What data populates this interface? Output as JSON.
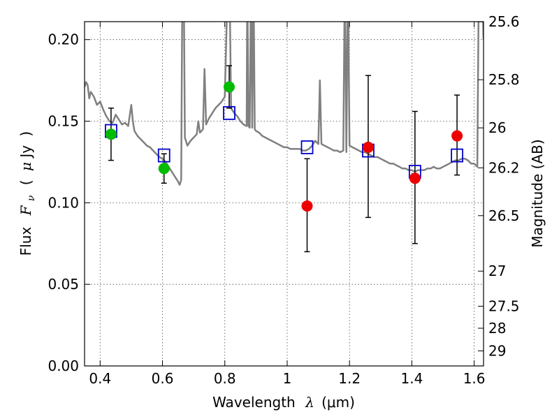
{
  "chart_data": {
    "type": "scatter",
    "xlabel": {
      "prefix": "Wavelength",
      "symbol": "λ",
      "unit": "(μm)"
    },
    "ylabel": {
      "prefix": "Flux",
      "symbol": "F",
      "subscript": "ν",
      "unit_open": "(",
      "unit_mu": "μ",
      "unit_rest": "Jy",
      "unit_close": ")"
    },
    "y2label": "Magnitude (AB)",
    "xlim": [
      0.35,
      1.63
    ],
    "ylim": [
      0.0,
      0.211
    ],
    "grid": true,
    "x_ticks": [
      {
        "value": 0.4,
        "label": "0.4"
      },
      {
        "value": 0.6,
        "label": "0.6"
      },
      {
        "value": 0.8,
        "label": "0.8"
      },
      {
        "value": 1.0,
        "label": "1"
      },
      {
        "value": 1.2,
        "label": "1.2"
      },
      {
        "value": 1.4,
        "label": "1.4"
      },
      {
        "value": 1.6,
        "label": "1.6"
      }
    ],
    "y_ticks": [
      {
        "value": 0.0,
        "label": "0.00"
      },
      {
        "value": 0.05,
        "label": "0.05"
      },
      {
        "value": 0.1,
        "label": "0.10"
      },
      {
        "value": 0.15,
        "label": "0.15"
      },
      {
        "value": 0.2,
        "label": "0.20"
      }
    ],
    "y2_ticks": [
      {
        "label": "25.6",
        "flux": 0.2109
      },
      {
        "label": "25.8",
        "flux": 0.1754
      },
      {
        "label": "26",
        "flux": 0.1459
      },
      {
        "label": "26.2",
        "flux": 0.1214
      },
      {
        "label": "26.5",
        "flux": 0.0921
      },
      {
        "label": "27",
        "flux": 0.0581
      },
      {
        "label": "27.5",
        "flux": 0.0366
      },
      {
        "label": "28",
        "flux": 0.0231
      },
      {
        "label": "29",
        "flux": 0.0092
      }
    ],
    "model_spectrum": {
      "color": "#808080",
      "points": [
        [
          0.35,
          0.171
        ],
        [
          0.355,
          0.174
        ],
        [
          0.36,
          0.172
        ],
        [
          0.365,
          0.164
        ],
        [
          0.37,
          0.168
        ],
        [
          0.38,
          0.165
        ],
        [
          0.39,
          0.16
        ],
        [
          0.4,
          0.162
        ],
        [
          0.41,
          0.157
        ],
        [
          0.42,
          0.153
        ],
        [
          0.43,
          0.15
        ],
        [
          0.44,
          0.149
        ],
        [
          0.45,
          0.154
        ],
        [
          0.46,
          0.151
        ],
        [
          0.47,
          0.148
        ],
        [
          0.48,
          0.149
        ],
        [
          0.49,
          0.147
        ],
        [
          0.5,
          0.16
        ],
        [
          0.505,
          0.15
        ],
        [
          0.51,
          0.144
        ],
        [
          0.52,
          0.141
        ],
        [
          0.53,
          0.139
        ],
        [
          0.54,
          0.137
        ],
        [
          0.55,
          0.135
        ],
        [
          0.56,
          0.134
        ],
        [
          0.57,
          0.132
        ],
        [
          0.58,
          0.13
        ],
        [
          0.59,
          0.128
        ],
        [
          0.6,
          0.127
        ],
        [
          0.61,
          0.125
        ],
        [
          0.62,
          0.122
        ],
        [
          0.63,
          0.119
        ],
        [
          0.64,
          0.116
        ],
        [
          0.65,
          0.113
        ],
        [
          0.655,
          0.111
        ],
        [
          0.66,
          0.114
        ],
        [
          0.662,
          0.18
        ],
        [
          0.664,
          0.24
        ],
        [
          0.668,
          0.24
        ],
        [
          0.672,
          0.14
        ],
        [
          0.68,
          0.135
        ],
        [
          0.69,
          0.138
        ],
        [
          0.7,
          0.14
        ],
        [
          0.71,
          0.142
        ],
        [
          0.715,
          0.15
        ],
        [
          0.72,
          0.143
        ],
        [
          0.73,
          0.145
        ],
        [
          0.735,
          0.182
        ],
        [
          0.74,
          0.148
        ],
        [
          0.75,
          0.152
        ],
        [
          0.76,
          0.155
        ],
        [
          0.77,
          0.158
        ],
        [
          0.78,
          0.16
        ],
        [
          0.79,
          0.162
        ],
        [
          0.8,
          0.165
        ],
        [
          0.81,
          0.24
        ],
        [
          0.815,
          0.24
        ],
        [
          0.82,
          0.158
        ],
        [
          0.83,
          0.155
        ],
        [
          0.84,
          0.153
        ],
        [
          0.85,
          0.15
        ],
        [
          0.86,
          0.148
        ],
        [
          0.87,
          0.147
        ],
        [
          0.872,
          0.24
        ],
        [
          0.876,
          0.147
        ],
        [
          0.88,
          0.146
        ],
        [
          0.884,
          0.24
        ],
        [
          0.888,
          0.146
        ],
        [
          0.892,
          0.24
        ],
        [
          0.896,
          0.145
        ],
        [
          0.9,
          0.144
        ],
        [
          0.91,
          0.143
        ],
        [
          0.92,
          0.141
        ],
        [
          0.93,
          0.14
        ],
        [
          0.94,
          0.139
        ],
        [
          0.95,
          0.138
        ],
        [
          0.96,
          0.137
        ],
        [
          0.97,
          0.136
        ],
        [
          0.98,
          0.135
        ],
        [
          0.99,
          0.134
        ],
        [
          1.0,
          0.134
        ],
        [
          1.01,
          0.133
        ],
        [
          1.02,
          0.133
        ],
        [
          1.03,
          0.133
        ],
        [
          1.04,
          0.133
        ],
        [
          1.05,
          0.132
        ],
        [
          1.06,
          0.132
        ],
        [
          1.07,
          0.133
        ],
        [
          1.08,
          0.135
        ],
        [
          1.09,
          0.138
        ],
        [
          1.1,
          0.136
        ],
        [
          1.105,
          0.175
        ],
        [
          1.11,
          0.136
        ],
        [
          1.12,
          0.135
        ],
        [
          1.13,
          0.134
        ],
        [
          1.14,
          0.133
        ],
        [
          1.15,
          0.132
        ],
        [
          1.16,
          0.132
        ],
        [
          1.17,
          0.131
        ],
        [
          1.18,
          0.132
        ],
        [
          1.185,
          0.24
        ],
        [
          1.19,
          0.131
        ],
        [
          1.195,
          0.24
        ],
        [
          1.2,
          0.135
        ],
        [
          1.21,
          0.134
        ],
        [
          1.22,
          0.133
        ],
        [
          1.23,
          0.132
        ],
        [
          1.24,
          0.131
        ],
        [
          1.25,
          0.131
        ],
        [
          1.26,
          0.13
        ],
        [
          1.27,
          0.129
        ],
        [
          1.28,
          0.128
        ],
        [
          1.29,
          0.128
        ],
        [
          1.3,
          0.127
        ],
        [
          1.31,
          0.126
        ],
        [
          1.32,
          0.125
        ],
        [
          1.33,
          0.124
        ],
        [
          1.34,
          0.124
        ],
        [
          1.35,
          0.123
        ],
        [
          1.36,
          0.122
        ],
        [
          1.37,
          0.121
        ],
        [
          1.38,
          0.121
        ],
        [
          1.39,
          0.12
        ],
        [
          1.4,
          0.12
        ],
        [
          1.41,
          0.119
        ],
        [
          1.42,
          0.12
        ],
        [
          1.43,
          0.12
        ],
        [
          1.44,
          0.12
        ],
        [
          1.45,
          0.121
        ],
        [
          1.46,
          0.121
        ],
        [
          1.47,
          0.122
        ],
        [
          1.48,
          0.121
        ],
        [
          1.49,
          0.121
        ],
        [
          1.5,
          0.122
        ],
        [
          1.51,
          0.123
        ],
        [
          1.52,
          0.124
        ],
        [
          1.53,
          0.125
        ],
        [
          1.54,
          0.126
        ],
        [
          1.55,
          0.126
        ],
        [
          1.56,
          0.127
        ],
        [
          1.57,
          0.127
        ],
        [
          1.58,
          0.126
        ],
        [
          1.59,
          0.124
        ],
        [
          1.6,
          0.124
        ],
        [
          1.61,
          0.122
        ],
        [
          1.615,
          0.24
        ],
        [
          1.625,
          0.24
        ],
        [
          1.63,
          0.2
        ]
      ]
    },
    "model_photometry": {
      "marker": "open-square",
      "color": "#0000cc",
      "points": [
        [
          0.435,
          0.144
        ],
        [
          0.605,
          0.129
        ],
        [
          0.814,
          0.155
        ],
        [
          1.064,
          0.134
        ],
        [
          1.26,
          0.132
        ],
        [
          1.41,
          0.119
        ],
        [
          1.545,
          0.129
        ]
      ]
    },
    "observed_detections": {
      "marker": "filled-circle",
      "color": "#00bb00",
      "points": [
        {
          "x": 0.435,
          "y": 0.142,
          "err_low": 0.016,
          "err_high": 0.016
        },
        {
          "x": 0.605,
          "y": 0.121,
          "err_low": 0.009,
          "err_high": 0.009
        },
        {
          "x": 0.814,
          "y": 0.171,
          "err_low": 0.013,
          "err_high": 0.013
        }
      ]
    },
    "observed_lowsn": {
      "marker": "filled-circle",
      "color": "#ee0000",
      "points": [
        {
          "x": 1.064,
          "y": 0.098,
          "err_low": 0.028,
          "err_high": 0.029
        },
        {
          "x": 1.26,
          "y": 0.134,
          "err_low": 0.043,
          "err_high": 0.044
        },
        {
          "x": 1.41,
          "y": 0.115,
          "err_low": 0.04,
          "err_high": 0.041
        },
        {
          "x": 1.545,
          "y": 0.141,
          "err_low": 0.024,
          "err_high": 0.025
        }
      ]
    }
  }
}
